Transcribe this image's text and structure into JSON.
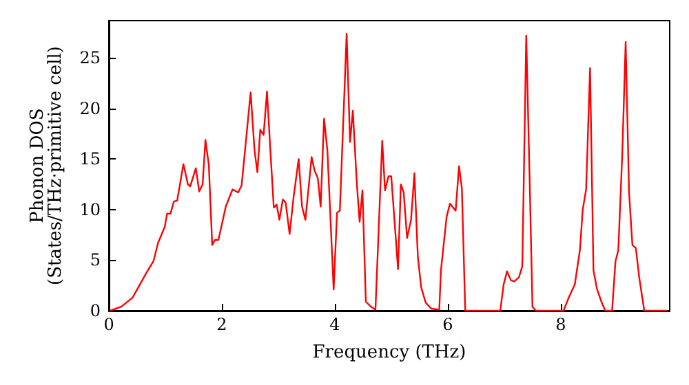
{
  "chart_data": {
    "type": "line",
    "xlabel": "Frequency (THz)",
    "ylabel": "Phonon DOS\n(States/THz·primitive cell)",
    "xlim": [
      0,
      9.93
    ],
    "ylim": [
      0,
      28.7
    ],
    "xticks": [
      0,
      2,
      4,
      6,
      8
    ],
    "yticks": [
      0,
      5,
      10,
      15,
      20,
      25
    ],
    "grid": false,
    "marker": "none",
    "line_style": "solid",
    "series": [
      {
        "color": "#ff0000",
        "x": [
          0.02,
          0.22,
          0.42,
          0.67,
          0.79,
          0.87,
          0.99,
          1.03,
          1.09,
          1.15,
          1.21,
          1.32,
          1.4,
          1.44,
          1.54,
          1.6,
          1.66,
          1.71,
          1.77,
          1.83,
          1.88,
          1.94,
          2.07,
          2.19,
          2.29,
          2.35,
          2.41,
          2.51,
          2.58,
          2.63,
          2.68,
          2.74,
          2.8,
          2.86,
          2.92,
          2.97,
          3.02,
          3.08,
          3.13,
          3.2,
          3.27,
          3.36,
          3.42,
          3.48,
          3.59,
          3.64,
          3.7,
          3.75,
          3.81,
          3.87,
          3.98,
          4.04,
          4.09,
          4.21,
          4.27,
          4.32,
          4.39,
          4.44,
          4.49,
          4.55,
          4.64,
          4.72,
          4.84,
          4.89,
          4.95,
          5.0,
          5.12,
          5.17,
          5.22,
          5.28,
          5.35,
          5.41,
          5.47,
          5.53,
          5.61,
          5.71,
          5.85,
          5.88,
          5.98,
          6.04,
          6.14,
          6.2,
          6.25,
          6.31,
          6.93,
          6.99,
          7.05,
          7.12,
          7.18,
          7.26,
          7.32,
          7.39,
          7.45,
          7.5,
          7.56,
          8.05,
          8.15,
          8.25,
          8.34,
          8.39,
          8.45,
          8.52,
          8.58,
          8.64,
          8.72,
          8.79,
          8.91,
          8.97,
          9.02,
          9.09,
          9.15,
          9.21,
          9.27,
          9.33,
          9.39,
          9.48,
          9.9
        ],
        "values": [
          0,
          0.4,
          1.3,
          3.8,
          4.9,
          6.7,
          8.3,
          9.6,
          9.6,
          10.8,
          10.9,
          14.5,
          12.5,
          12.3,
          14.1,
          11.8,
          12.5,
          16.9,
          14.4,
          6.5,
          7.0,
          7.0,
          10.3,
          12.0,
          11.7,
          12.4,
          15.8,
          21.6,
          15.8,
          13.7,
          17.9,
          17.4,
          21.7,
          15.8,
          10.2,
          10.5,
          9.0,
          11.0,
          10.7,
          7.6,
          11.2,
          15.0,
          10.3,
          9.0,
          15.2,
          13.9,
          13.1,
          10.3,
          19.0,
          15.8,
          2.1,
          9.7,
          9.9,
          27.4,
          16.7,
          19.8,
          12.6,
          8.8,
          11.9,
          0.9,
          0.4,
          0.1,
          16.8,
          11.9,
          13.3,
          13.3,
          4.1,
          12.5,
          11.7,
          7.2,
          9.0,
          13.6,
          5.4,
          2.3,
          0.8,
          0.2,
          0.1,
          4.0,
          9.3,
          10.6,
          9.9,
          14.3,
          12.1,
          0,
          0,
          2.6,
          3.9,
          3.0,
          2.9,
          3.3,
          4.4,
          27.2,
          13.0,
          0.4,
          0,
          0,
          1.4,
          2.6,
          6.0,
          10.0,
          12.0,
          24.0,
          4.0,
          2.2,
          0.9,
          0,
          0,
          4.9,
          6.0,
          15.5,
          26.6,
          11.7,
          6.5,
          6.2,
          3.3,
          0,
          0
        ]
      }
    ]
  }
}
